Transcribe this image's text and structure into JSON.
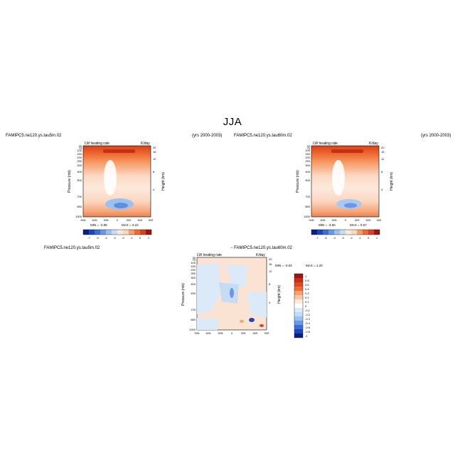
{
  "title": "JJA",
  "colors": {
    "blue_dark": "#0a1e8a",
    "blue_mid": "#3b6fd6",
    "blue_light": "#c6dcf5",
    "white": "#ffffff",
    "orange_light": "#fbd7c0",
    "orange_mid": "#f5894a",
    "red_dark": "#a0150d"
  },
  "panels": [
    {
      "case": "FAMIPC5.ne120.ys.tau5m.02",
      "years": "(yrs 2000-2003)",
      "variable": "LW heating rate",
      "units": "K/day",
      "ylabel": "Pressure (mb)",
      "y2label": "Height (km)",
      "min_label": "MIN = -3.88",
      "max_label": "MAX = 0.22"
    },
    {
      "case": "FAMIPC5.ne120.ys.tau60m.02",
      "years": "(yrs 2000-2003)",
      "variable": "LW heating rate",
      "units": "K/day",
      "ylabel": "Pressure (mb)",
      "y2label": "Height (km)",
      "min_label": "MIN = -3.60",
      "max_label": "MAX = 0.67"
    }
  ],
  "diff_panel": {
    "case_a": "FAMIPC5.ne120.ys.tau5m.02",
    "case_b": "− FAMIPC5.ne120.ys.tau60m.02",
    "variable": "LW heating rate",
    "units": "K/day",
    "ylabel": "Pressure (mb)",
    "y2label": "Height (km)",
    "min_label": "MIN = -0.63",
    "max_label": "MAX = 1.20"
  },
  "chart_data": [
    {
      "type": "heatmap",
      "title": "LW heating rate",
      "xlabel": "",
      "ylabel": "Pressure (mb)",
      "x_ticks": [
        "90N",
        "60N",
        "30N",
        "0",
        "30S",
        "60S",
        "90S"
      ],
      "y_ticks": [
        "1000",
        "850",
        "700",
        "500",
        "400",
        "300",
        "250",
        "200",
        "150",
        "100",
        "70",
        "50",
        "30"
      ],
      "y2_ticks": [
        "4",
        "8",
        "12",
        "16",
        "20"
      ],
      "colorbar_labels": [
        "-7",
        "-5",
        "-4",
        "-3",
        "-2",
        "-1",
        "0",
        "1"
      ],
      "min": -3.88,
      "max": 0.22
    },
    {
      "type": "heatmap",
      "title": "LW heating rate",
      "xlabel": "",
      "ylabel": "Pressure (mb)",
      "x_ticks": [
        "90N",
        "60N",
        "30N",
        "0",
        "30S",
        "60S",
        "90S"
      ],
      "y_ticks": [
        "1000",
        "850",
        "700",
        "500",
        "400",
        "300",
        "250",
        "200",
        "150",
        "100",
        "70",
        "50",
        "30"
      ],
      "y2_ticks": [
        "4",
        "8",
        "12",
        "16",
        "20"
      ],
      "colorbar_labels": [
        "-7",
        "-5",
        "-4",
        "-3",
        "-2",
        "-1",
        "0",
        "1"
      ],
      "min": -3.6,
      "max": 0.67
    },
    {
      "type": "heatmap",
      "title": "LW heating rate",
      "xlabel": "",
      "ylabel": "Pressure (mb)",
      "x_ticks": [
        "90N",
        "60N",
        "30N",
        "0",
        "30S",
        "60S",
        "90S"
      ],
      "y_ticks": [
        "1000",
        "850",
        "700",
        "500",
        "400",
        "300",
        "250",
        "200",
        "150",
        "100",
        "70",
        "50",
        "30"
      ],
      "y2_ticks": [
        "4",
        "8",
        "12",
        "16",
        "20"
      ],
      "colorbar_labels": [
        "1",
        "0.8",
        "0.6",
        "0.4",
        "0.3",
        "0.2",
        "0.1",
        "0",
        "-0.1",
        "-0.2",
        "-0.3",
        "-0.4",
        "-0.6",
        "-0.8",
        "-1"
      ],
      "min": -0.63,
      "max": 1.2
    }
  ]
}
